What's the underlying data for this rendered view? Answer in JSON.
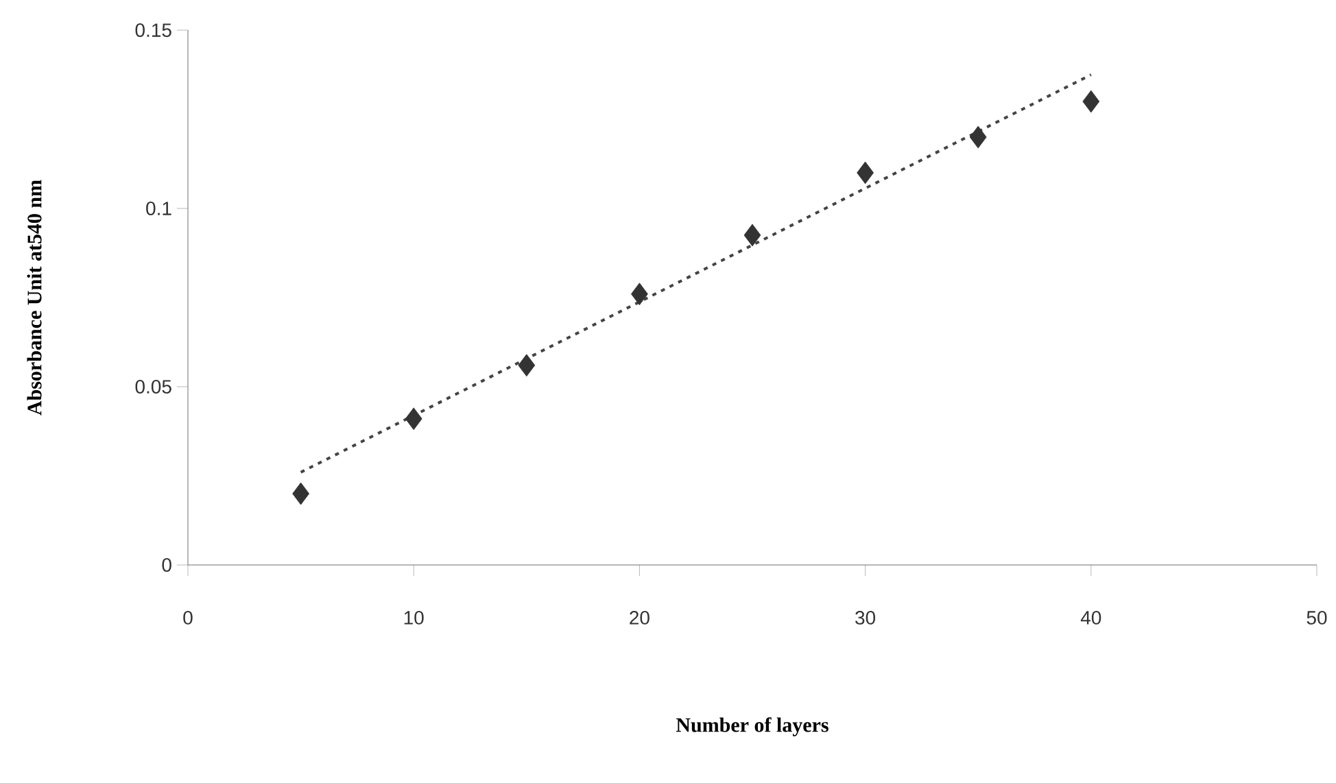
{
  "chart_data": {
    "type": "scatter",
    "xlabel": "Number of layers",
    "ylabel": "Absorbance Unit at540 nm",
    "xlim": [
      0,
      50
    ],
    "xticks": [
      0,
      10,
      20,
      30,
      40,
      50
    ],
    "ylim": [
      0,
      0.15
    ],
    "yticks": [
      0,
      0.05,
      0.1,
      0.15
    ],
    "grid": false,
    "series": [
      {
        "color": "#333333",
        "marker": "diamond",
        "x": [
          5,
          10,
          15,
          20,
          25,
          30,
          35,
          40
        ],
        "values": [
          0.02,
          0.041,
          0.056,
          0.076,
          0.0925,
          0.11,
          0.12,
          0.13
        ]
      },
      {
        "type": "line",
        "color": "#444444",
        "line_style": "dotted",
        "x": [
          5,
          40
        ],
        "values": [
          0.026,
          0.1375
        ]
      }
    ]
  }
}
